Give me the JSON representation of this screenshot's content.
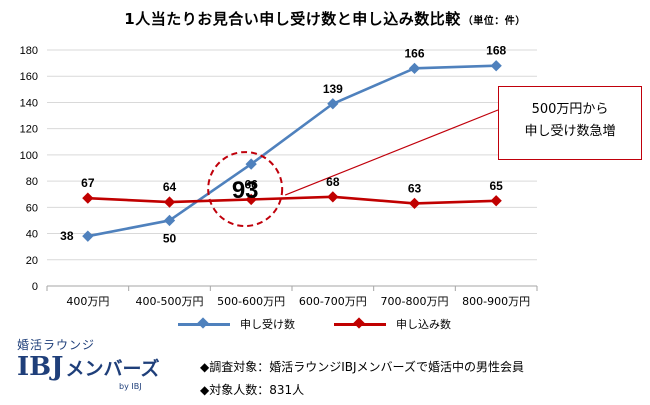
{
  "title": "1人当たりお見合い申し受け数と申し込み数比較",
  "unit_note": "（単位：件）",
  "chart_data": {
    "type": "line",
    "categories": [
      "400万円",
      "400-500万円",
      "500-600万円",
      "600-700万円",
      "700-800万円",
      "800-900万円"
    ],
    "series": [
      {
        "name": "申し受け数",
        "values": [
          38,
          50,
          93,
          139,
          166,
          168
        ],
        "color": "#4f81bd"
      },
      {
        "name": "申し込み数",
        "values": [
          67,
          64,
          66,
          68,
          63,
          65
        ],
        "color": "#c00000"
      }
    ],
    "ylim": [
      0,
      180
    ],
    "yticks": [
      0,
      20,
      40,
      60,
      80,
      100,
      120,
      140,
      160,
      180
    ],
    "grid": true,
    "legend": "bottom",
    "highlight": {
      "category": "500-600万円",
      "series": "申し受け数",
      "value": 93
    },
    "callout": {
      "line1": "500万円から",
      "line2": "申し受け数急増",
      "color": "#c0000b"
    }
  },
  "branding": {
    "subtitle": "婚活ラウンジ",
    "logo": "IBJ",
    "logo_kana": "メンバーズ",
    "by": "by IBJ",
    "color": "#1f3f7a"
  },
  "notes": [
    "◆調査対象：婚活ラウンジIBJメンバーズで婚活中の男性会員",
    "◆対象人数：831人"
  ]
}
